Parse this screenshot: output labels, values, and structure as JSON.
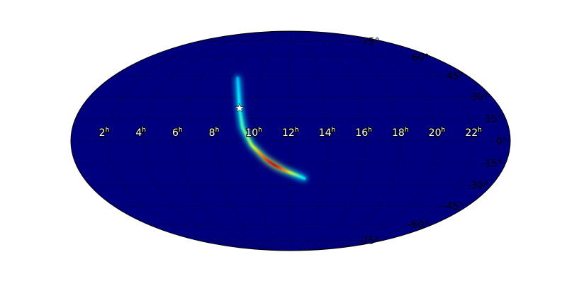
{
  "chart_data": {
    "type": "heatmap",
    "projection": "mollweide",
    "title": "",
    "background_color": "#00007f",
    "colormap": "jet",
    "grid": true,
    "grid_style": "dotted",
    "ra_tick_labels": [
      "22",
      "20",
      "18",
      "16",
      "14",
      "12",
      "10",
      "8",
      "6",
      "4",
      "2"
    ],
    "ra_tick_values_hours": [
      22,
      20,
      18,
      16,
      14,
      12,
      10,
      8,
      6,
      4,
      2
    ],
    "ra_unit_suffix": "h",
    "dec_tick_labels": [
      "75°",
      "60°",
      "45°",
      "30°",
      "15°",
      "0°",
      "-15°",
      "-30°",
      "-45°",
      "-60°",
      "-75°"
    ],
    "dec_tick_values_deg": [
      75,
      60,
      45,
      30,
      15,
      0,
      -15,
      -30,
      -45,
      -60,
      -75
    ],
    "probability_arc": [
      {
        "ra_h": 8.47,
        "dec": 43.5,
        "intensity": 0.1
      },
      {
        "ra_h": 9.08,
        "dec": 22.0,
        "intensity": 0.2
      },
      {
        "ra_h": 9.35,
        "dec": 9.0,
        "intensity": 0.3
      },
      {
        "ra_h": 9.87,
        "dec": -2.8,
        "intensity": 0.45
      },
      {
        "ra_h": 10.63,
        "dec": -12.3,
        "intensity": 0.8
      },
      {
        "ra_h": 11.1,
        "dec": -16.2,
        "intensity": 1.0
      },
      {
        "ra_h": 11.6,
        "dec": -19.4,
        "intensity": 0.75
      },
      {
        "ra_h": 12.82,
        "dec": -25.3,
        "intensity": 0.15
      }
    ],
    "marker": {
      "symbol": "star",
      "ra_h": 9.08,
      "dec": 22.0,
      "color": "#ffffff"
    }
  }
}
